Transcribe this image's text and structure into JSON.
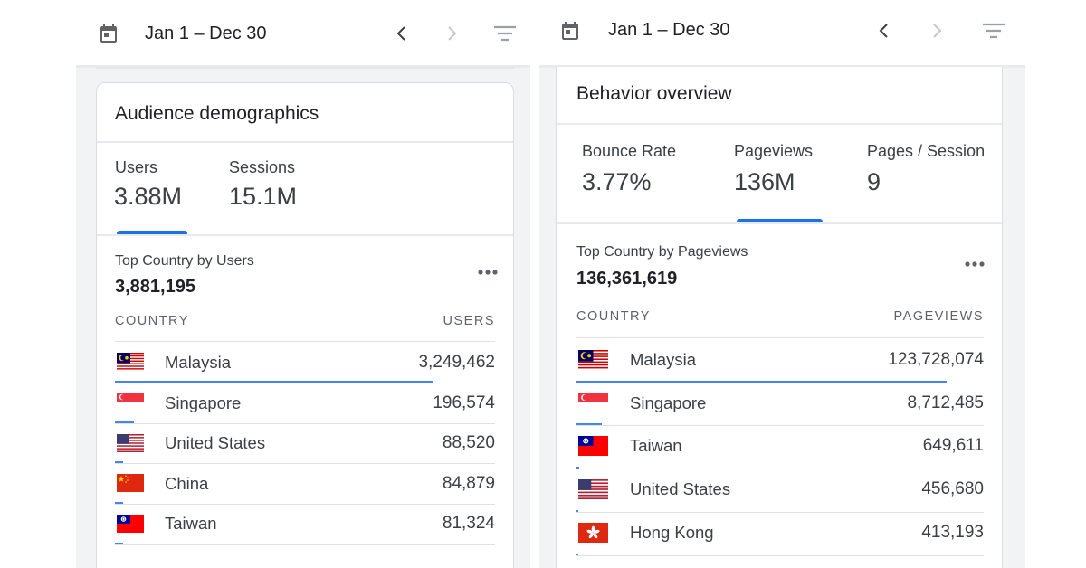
{
  "colors": {
    "accent": "#1a73e8",
    "bar": "#4285f4",
    "text": "#202124",
    "muted": "#5f6368",
    "panel_bg": "#f1f3f4"
  },
  "left": {
    "toolbar": {
      "date_range": "Jan 1 – Dec 30",
      "icons": [
        "calendar-icon",
        "chevron-left-icon",
        "chevron-right-icon",
        "filter-icon"
      ]
    },
    "card": {
      "title": "Audience demographics",
      "tabs": [
        {
          "label": "Users",
          "value": "3.88M",
          "selected": true
        },
        {
          "label": "Sessions",
          "value": "15.1M",
          "selected": false
        }
      ],
      "subtitle": "Top Country by Users",
      "subtotal": "3,881,195",
      "columns": [
        "COUNTRY",
        "USERS"
      ],
      "rows": [
        {
          "flag": "malaysia-flag",
          "country": "Malaysia",
          "value": "3,249,462",
          "share": 0.837
        },
        {
          "flag": "singapore-flag",
          "country": "Singapore",
          "value": "196,574",
          "share": 0.051
        },
        {
          "flag": "united-states-flag",
          "country": "United States",
          "value": "88,520",
          "share": 0.023
        },
        {
          "flag": "china-flag",
          "country": "China",
          "value": "84,879",
          "share": 0.022
        },
        {
          "flag": "taiwan-flag",
          "country": "Taiwan",
          "value": "81,324",
          "share": 0.021
        }
      ]
    }
  },
  "right": {
    "toolbar": {
      "date_range": "Jan 1 – Dec 30",
      "icons": [
        "calendar-icon",
        "chevron-left-icon",
        "chevron-right-icon",
        "filter-icon"
      ]
    },
    "card": {
      "title": "Behavior overview",
      "tabs": [
        {
          "label": "Bounce Rate",
          "value": "3.77%",
          "selected": false
        },
        {
          "label": "Pageviews",
          "value": "136M",
          "selected": true
        },
        {
          "label": "Pages / Session",
          "value": "9",
          "selected": false
        }
      ],
      "subtitle": "Top Country by Pageviews",
      "subtotal": "136,361,619",
      "columns": [
        "COUNTRY",
        "PAGEVIEWS"
      ],
      "rows": [
        {
          "flag": "malaysia-flag",
          "country": "Malaysia",
          "value": "123,728,074",
          "share": 0.907
        },
        {
          "flag": "singapore-flag",
          "country": "Singapore",
          "value": "8,712,485",
          "share": 0.064
        },
        {
          "flag": "taiwan-flag",
          "country": "Taiwan",
          "value": "649,611",
          "share": 0.005
        },
        {
          "flag": "united-states-flag",
          "country": "United States",
          "value": "456,680",
          "share": 0.003
        },
        {
          "flag": "hong-kong-flag",
          "country": "Hong Kong",
          "value": "413,193",
          "share": 0.003
        }
      ]
    }
  }
}
